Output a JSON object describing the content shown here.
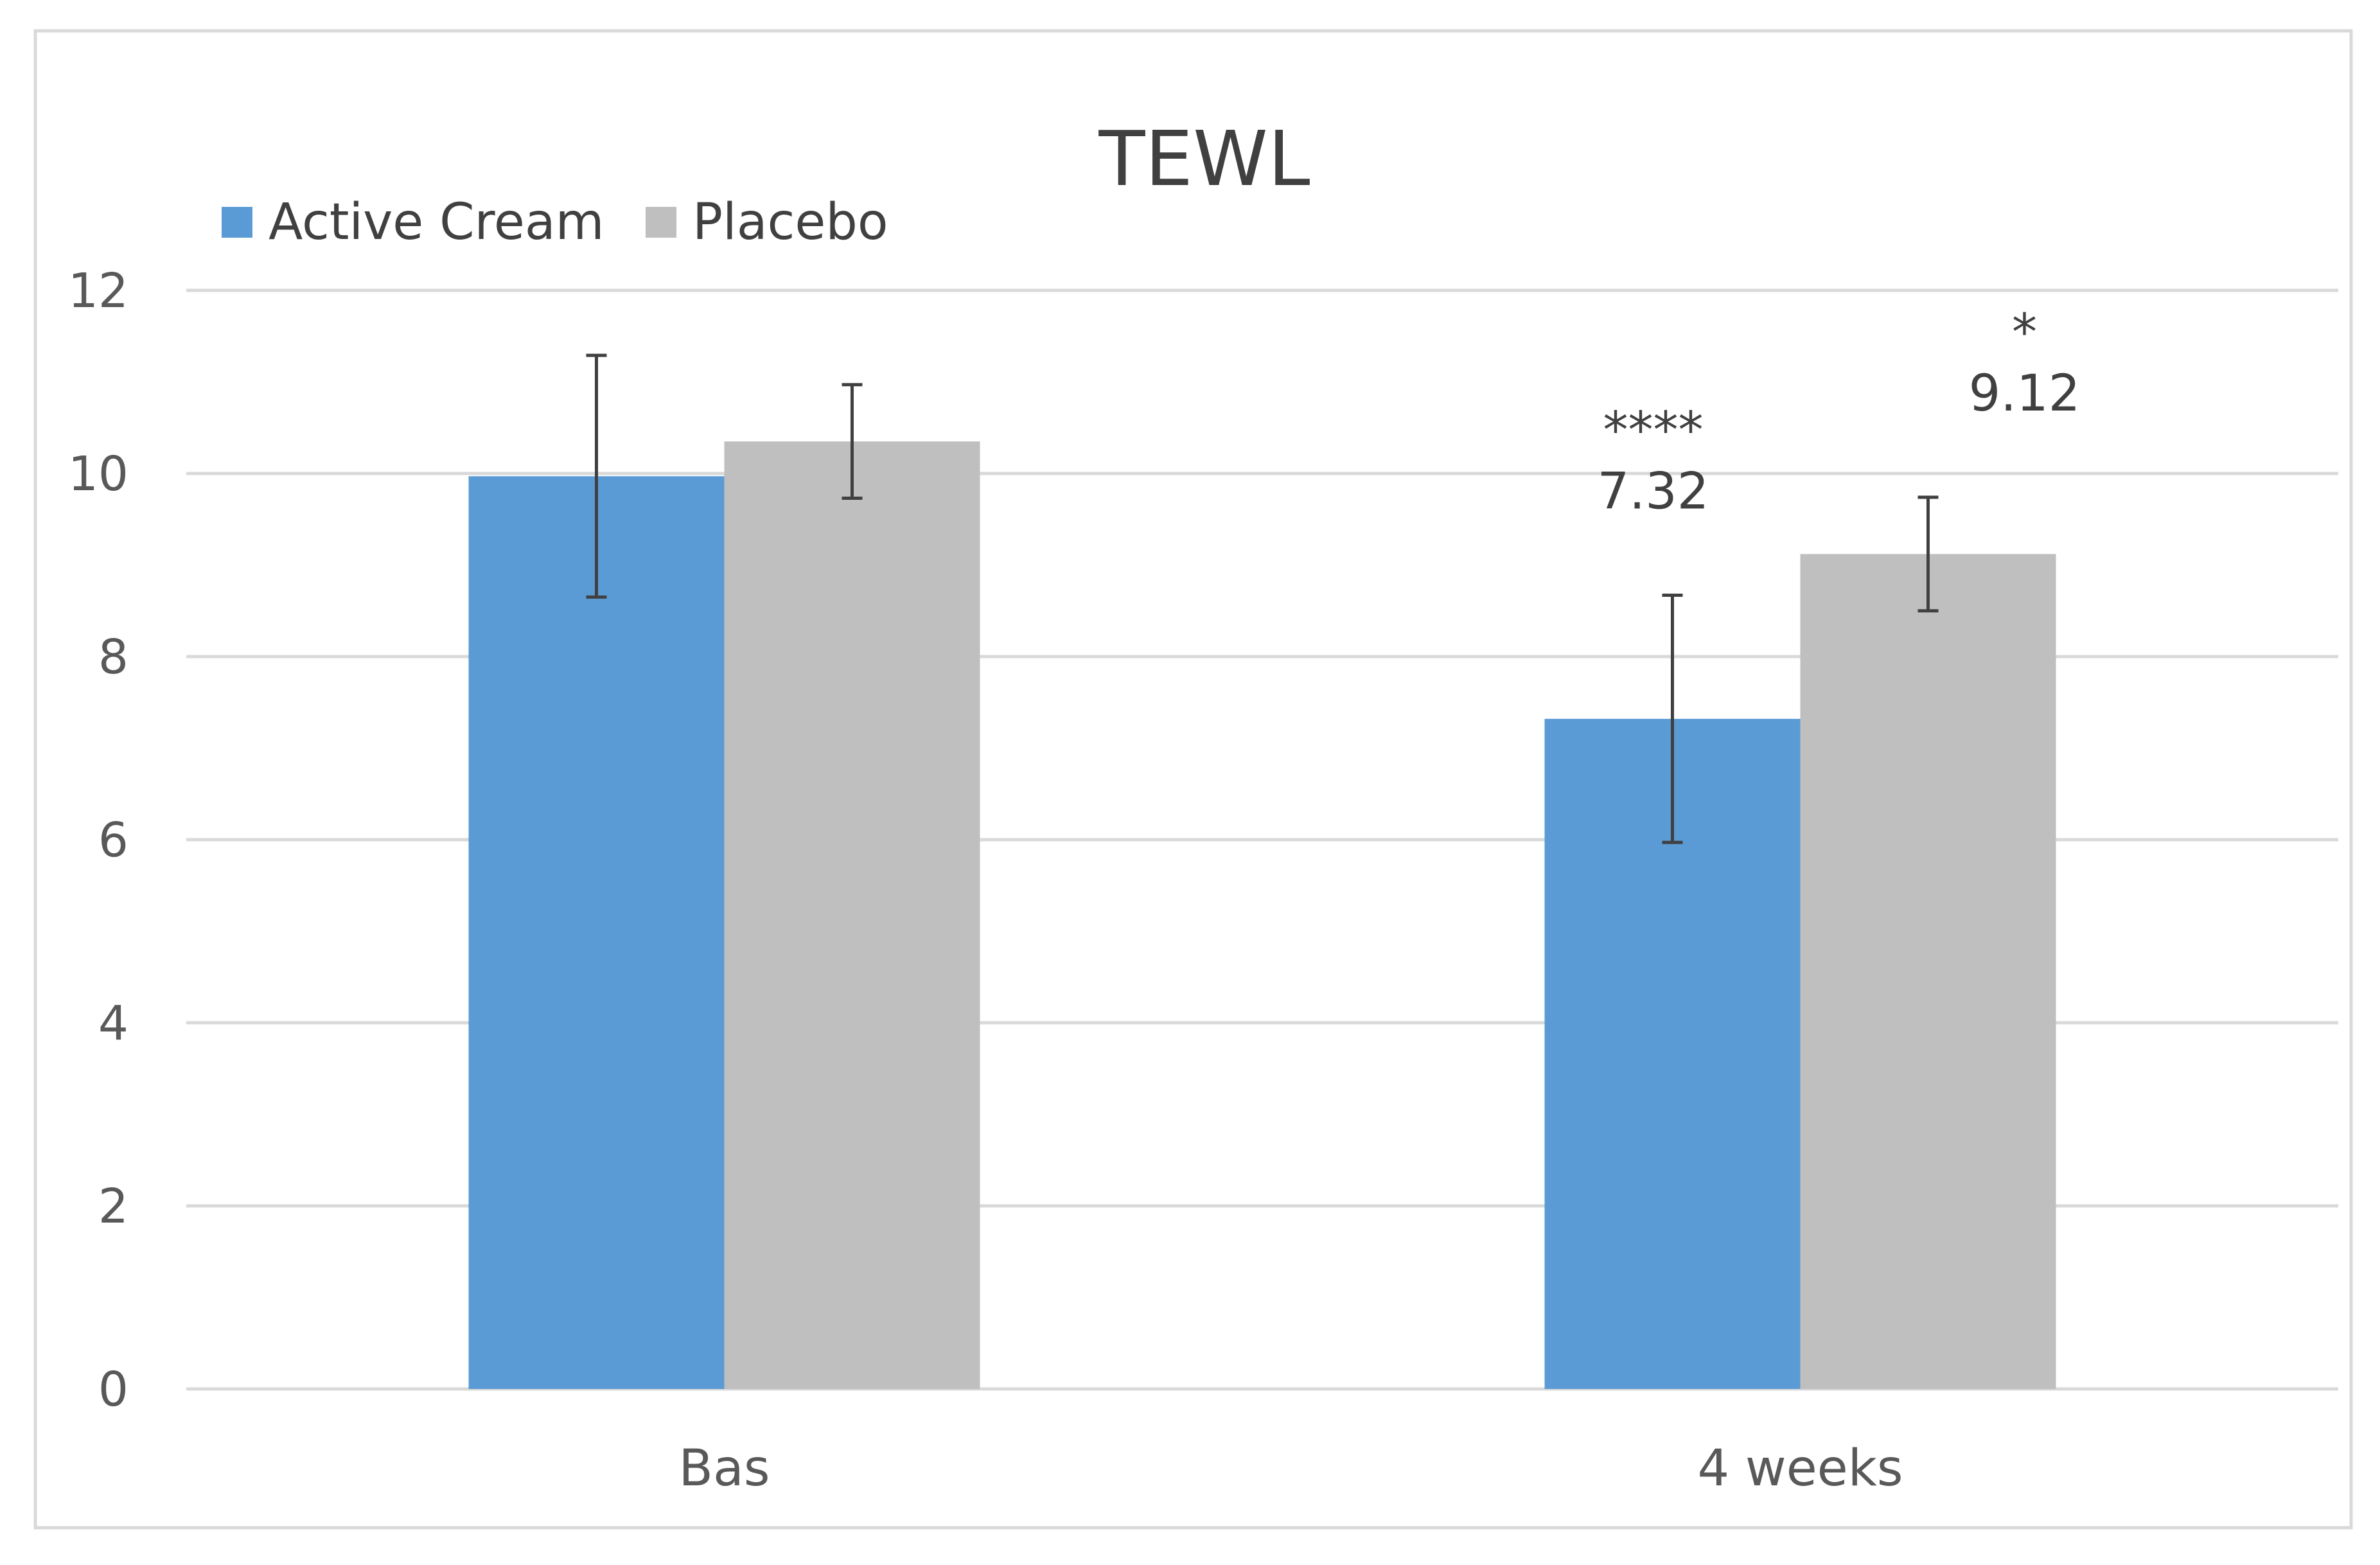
{
  "chart_data": {
    "type": "bar",
    "title": "TEWL",
    "xlabel": "",
    "ylabel": "",
    "categories": [
      "Bas",
      "4 weeks"
    ],
    "series": [
      {
        "name": "Active Cream",
        "color": "#5B9BD5",
        "values": [
          9.97,
          7.32
        ],
        "error": [
          1.32,
          1.35
        ],
        "data_labels": [
          "",
          "7.32"
        ],
        "significance": [
          "",
          "****"
        ]
      },
      {
        "name": "Placebo",
        "color": "#BFBFBF",
        "values": [
          10.35,
          9.12
        ],
        "error": [
          0.62,
          0.62
        ],
        "data_labels": [
          "",
          "9.12"
        ],
        "significance": [
          "",
          "*"
        ]
      }
    ],
    "ylim": [
      0,
      12
    ],
    "yticks": [
      "0",
      "2",
      "4",
      "6",
      "8",
      "10",
      "12"
    ],
    "grid": true,
    "legend_position": "top-left"
  }
}
